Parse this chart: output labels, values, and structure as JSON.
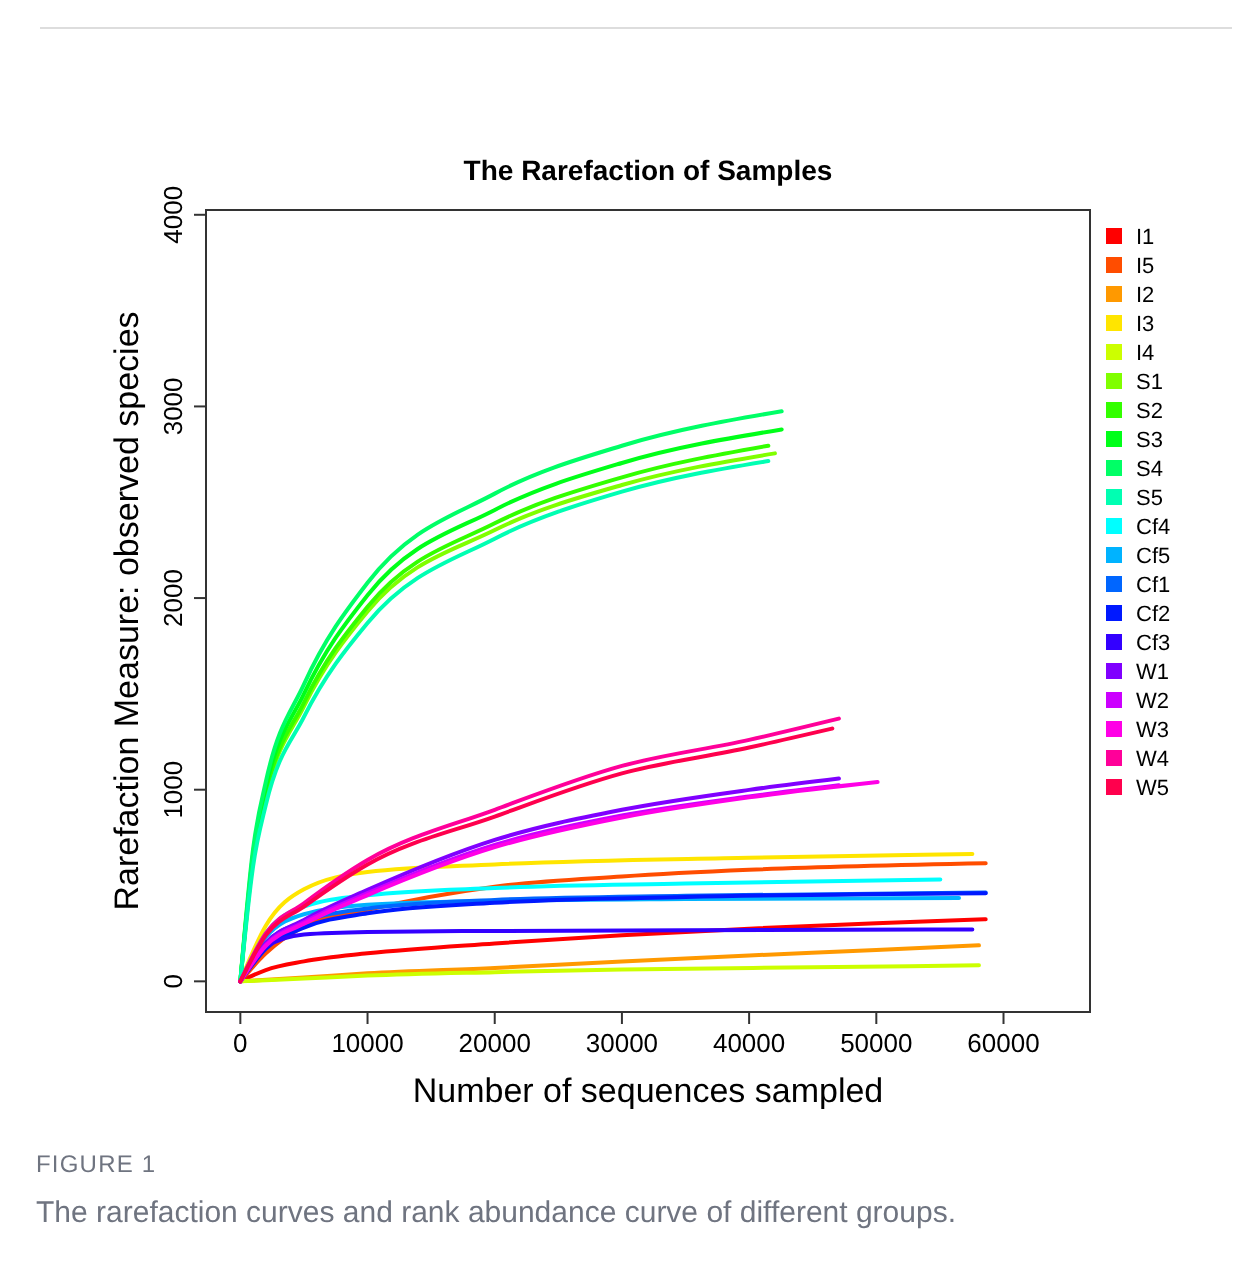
{
  "chart_data": {
    "type": "line",
    "title": "The Rarefaction of Samples",
    "xlabel": "Number of sequences sampled",
    "ylabel": "Rarefaction Measure: observed species",
    "annotations": [
      "FIGURE 1",
      "The rarefaction curves and rank abundance curve of different groups."
    ],
    "xlim": [
      -2700,
      66800
    ],
    "ylim": [
      -160,
      4025
    ],
    "xticks": [
      0,
      10000,
      20000,
      30000,
      40000,
      50000,
      60000
    ],
    "yticks": [
      0,
      1000,
      2000,
      3000,
      4000
    ],
    "grid": false,
    "legend": "right",
    "line_style": "solid",
    "series": [
      {
        "name": "I1",
        "color": "#ff0000",
        "x": [
          0,
          2000,
          5000,
          10000,
          20000,
          30000,
          40000,
          50000,
          58600
        ],
        "values": [
          0,
          59,
          104,
          146,
          198,
          240,
          275,
          303,
          324
        ]
      },
      {
        "name": "I5",
        "color": "#ff4d00",
        "x": [
          0,
          2000,
          5000,
          10000,
          20000,
          30000,
          40000,
          58600
        ],
        "values": [
          0,
          146,
          286,
          373,
          494,
          547,
          582,
          616
        ]
      },
      {
        "name": "I2",
        "color": "#ff9900",
        "x": [
          0,
          5000,
          10000,
          20000,
          30000,
          40000,
          50000,
          58070
        ],
        "values": [
          0,
          20,
          42,
          70,
          104,
          135,
          163,
          188
        ]
      },
      {
        "name": "I3",
        "color": "#ffe500",
        "x": [
          0,
          2000,
          5000,
          10000,
          20000,
          40000,
          57550
        ],
        "values": [
          0,
          290,
          480,
          570,
          610,
          645,
          665
        ]
      },
      {
        "name": "I4",
        "color": "#ccff00",
        "x": [
          0,
          5000,
          10000,
          20000,
          30000,
          45000,
          58070
        ],
        "values": [
          0,
          15,
          30,
          48,
          62,
          73,
          84
        ]
      },
      {
        "name": "S1",
        "color": "#80ff00",
        "x": [
          0,
          1000,
          2000,
          5000,
          10000,
          20000,
          30000,
          42030
        ],
        "values": [
          0,
          635,
          965,
          1435,
          1930,
          2355,
          2590,
          2755
        ]
      },
      {
        "name": "S2",
        "color": "#33ff00",
        "x": [
          0,
          1000,
          2000,
          5000,
          10000,
          20000,
          30000,
          41510
        ],
        "values": [
          0,
          645,
          980,
          1455,
          1955,
          2390,
          2630,
          2795
        ]
      },
      {
        "name": "S3",
        "color": "#00ff19",
        "x": [
          0,
          1000,
          2000,
          5000,
          10000,
          20000,
          30000,
          42560
        ],
        "values": [
          0,
          665,
          1010,
          1500,
          2015,
          2460,
          2705,
          2880
        ]
      },
      {
        "name": "S4",
        "color": "#00ff66",
        "x": [
          0,
          1000,
          2000,
          5000,
          10000,
          20000,
          30000,
          42560
        ],
        "values": [
          0,
          690,
          1040,
          1550,
          2080,
          2545,
          2795,
          2975
        ]
      },
      {
        "name": "S5",
        "color": "#00ffb2",
        "x": [
          0,
          1000,
          2000,
          5000,
          10000,
          20000,
          30000,
          41510
        ],
        "values": [
          0,
          600,
          920,
          1380,
          1870,
          2310,
          2555,
          2715
        ]
      },
      {
        "name": "Cf4",
        "color": "#00ffff",
        "x": [
          0,
          2000,
          5000,
          10000,
          20000,
          35000,
          55030
        ],
        "values": [
          0,
          250,
          390,
          449,
          487,
          510,
          532
        ]
      },
      {
        "name": "Cf5",
        "color": "#00b3ff",
        "x": [
          0,
          2000,
          5000,
          10000,
          20000,
          35000,
          56500
        ],
        "values": [
          0,
          230,
          350,
          400,
          420,
          430,
          435
        ]
      },
      {
        "name": "Cf1",
        "color": "#0066ff",
        "x": [
          0,
          2000,
          5000,
          10000,
          20000,
          35000,
          58600
        ],
        "values": [
          0,
          200,
          310,
          380,
          425,
          447,
          463
        ]
      },
      {
        "name": "Cf2",
        "color": "#0019ff",
        "x": [
          0,
          2000,
          5000,
          10000,
          20000,
          35000,
          58600
        ],
        "values": [
          0,
          170,
          280,
          355,
          410,
          440,
          460
        ]
      },
      {
        "name": "Cf3",
        "color": "#3300ff",
        "x": [
          0,
          2000,
          5000,
          10000,
          20000,
          35000,
          57550
        ],
        "values": [
          0,
          180,
          245,
          258,
          263,
          267,
          271
        ]
      },
      {
        "name": "W1",
        "color": "#8000ff",
        "x": [
          0,
          2000,
          5000,
          10000,
          20000,
          30000,
          40000,
          47060
        ],
        "values": [
          0,
          198,
          320,
          477,
          738,
          895,
          999,
          1058
        ]
      },
      {
        "name": "W2",
        "color": "#cc00ff",
        "x": [
          0,
          2000,
          5000,
          10000,
          20000,
          30000,
          40000,
          47060
        ],
        "values": [
          0,
          190,
          308,
          460,
          712,
          865,
          965,
          1023
        ]
      },
      {
        "name": "W3",
        "color": "#ff00e6",
        "x": [
          0,
          2000,
          5000,
          10000,
          20000,
          30000,
          40000,
          50100
        ],
        "values": [
          0,
          185,
          300,
          450,
          700,
          855,
          960,
          1040
        ]
      },
      {
        "name": "W4",
        "color": "#ff0099",
        "x": [
          0,
          2000,
          5000,
          10000,
          20000,
          30000,
          40000,
          47060
        ],
        "values": [
          0,
          250,
          407,
          633,
          895,
          1124,
          1260,
          1371
        ]
      },
      {
        "name": "W5",
        "color": "#ff004d",
        "x": [
          0,
          2000,
          5000,
          10000,
          20000,
          30000,
          40000,
          46540
        ],
        "values": [
          0,
          240,
          390,
          610,
          860,
          1085,
          1220,
          1319
        ]
      }
    ]
  }
}
